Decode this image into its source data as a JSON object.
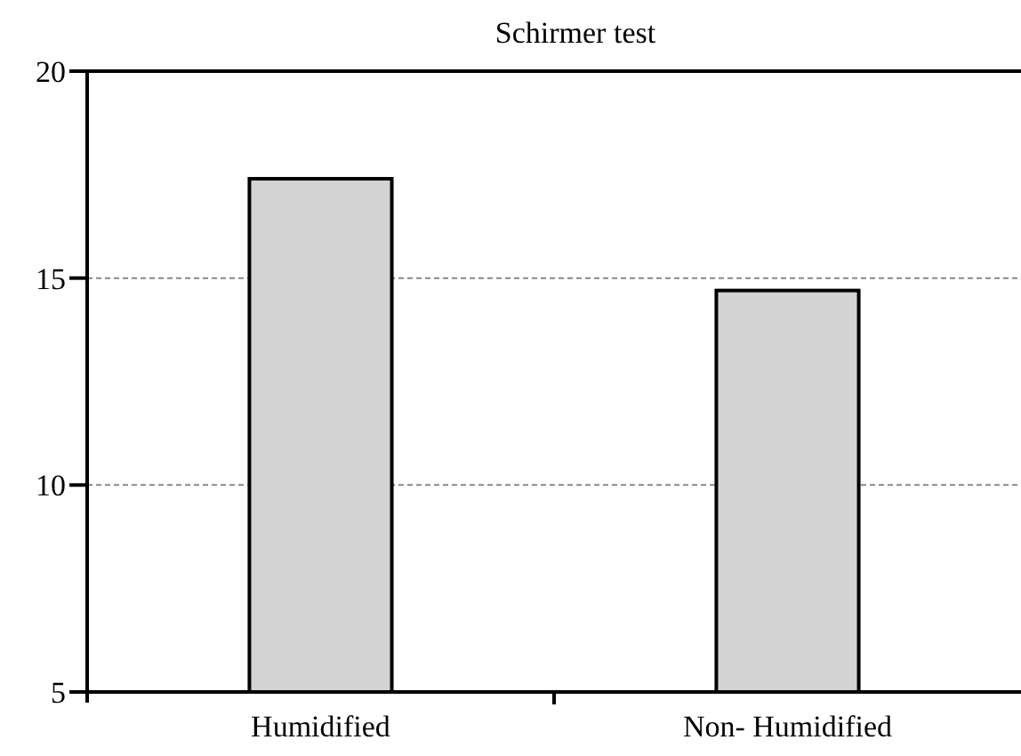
{
  "chart_data": {
    "type": "bar",
    "title": "Schirmer test",
    "categories": [
      "Humidified",
      "Non- Humidified"
    ],
    "values": [
      17.4,
      14.7
    ],
    "color": "#d3d3d3",
    "ylim": [
      5,
      20
    ],
    "yticks": [
      5,
      10,
      15,
      20
    ],
    "grid": "y"
  }
}
